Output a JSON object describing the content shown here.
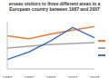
{
  "chart_data": {
    "type": "line",
    "title": "erseas visitors to three different areas in a European country between 1987 and 2007",
    "categories": [
      "1987",
      "1992",
      "1997",
      "2002",
      "2007"
    ],
    "series": [
      {
        "color": "#ed7d31",
        "values": [
          3.5,
          3.2,
          3.7,
          4.1,
          4.5
        ]
      },
      {
        "color": "#a5a5a5",
        "values": [
          2.2,
          2.4,
          2.6,
          2.7,
          2.8
        ]
      },
      {
        "color": "#4472c4",
        "values": [
          1.0,
          1.8,
          3.0,
          4.4,
          3.3
        ]
      }
    ],
    "ylim": [
      0,
      5
    ],
    "yticks": [
      0,
      1,
      2,
      3,
      4,
      5
    ],
    "grid": false,
    "tick_labels": "x"
  }
}
